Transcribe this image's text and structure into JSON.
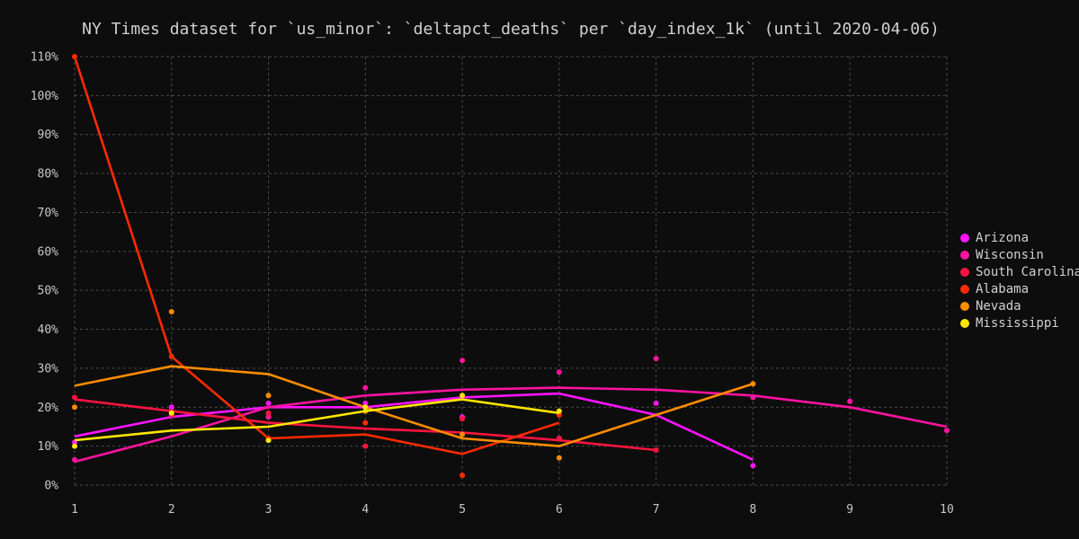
{
  "chart_data": {
    "type": "line",
    "title": "NY Times dataset for `us_minor`: `deltapct_deaths` per `day_index_1k` (until 2020-04-06)",
    "xlabel": "",
    "ylabel": "",
    "xlim": [
      1,
      10
    ],
    "ylim": [
      0,
      110
    ],
    "x_ticks": [
      1,
      2,
      3,
      4,
      5,
      6,
      7,
      8,
      9,
      10
    ],
    "y_ticks": [
      0,
      10,
      20,
      30,
      40,
      50,
      60,
      70,
      80,
      90,
      100,
      110
    ],
    "y_tick_format": "percent",
    "grid": true,
    "legend_position": "right",
    "series": [
      {
        "name": "Arizona",
        "color": "#ff14ff",
        "points": [
          [
            1,
            11
          ],
          [
            2,
            20
          ],
          [
            3,
            21
          ],
          [
            4,
            21
          ],
          [
            5,
            17.5
          ],
          [
            6,
            12
          ],
          [
            7,
            21
          ],
          [
            8,
            5
          ]
        ],
        "trend": [
          [
            1,
            12.5
          ],
          [
            2,
            17.5
          ],
          [
            3,
            20
          ],
          [
            4,
            20
          ],
          [
            5,
            22.5
          ],
          [
            6,
            23.5
          ],
          [
            7,
            18
          ],
          [
            8,
            6.5
          ]
        ]
      },
      {
        "name": "Wisconsin",
        "color": "#ff14a0",
        "points": [
          [
            1,
            6.5
          ],
          [
            2,
            19
          ],
          [
            3,
            17.5
          ],
          [
            4,
            25
          ],
          [
            5,
            32
          ],
          [
            6,
            29
          ],
          [
            7,
            32.5
          ],
          [
            8,
            22.5
          ],
          [
            9,
            21.5
          ],
          [
            10,
            14
          ]
        ],
        "trend": [
          [
            1,
            6
          ],
          [
            2,
            12.5
          ],
          [
            3,
            20
          ],
          [
            4,
            23
          ],
          [
            5,
            24.5
          ],
          [
            6,
            25
          ],
          [
            7,
            24.5
          ],
          [
            8,
            23
          ],
          [
            9,
            20
          ],
          [
            10,
            15
          ]
        ]
      },
      {
        "name": "South Carolina",
        "color": "#ff1440",
        "points": [
          [
            1,
            22.5
          ],
          [
            2,
            18
          ],
          [
            3,
            18.5
          ],
          [
            4,
            10
          ],
          [
            5,
            17
          ],
          [
            6,
            12
          ],
          [
            7,
            9
          ]
        ],
        "trend": [
          [
            1,
            22
          ],
          [
            2,
            19
          ],
          [
            3,
            16
          ],
          [
            4,
            14.5
          ],
          [
            5,
            13.5
          ],
          [
            6,
            11.5
          ],
          [
            7,
            9
          ]
        ]
      },
      {
        "name": "Alabama",
        "color": "#ff2a00",
        "points": [
          [
            1,
            110
          ],
          [
            2,
            33
          ],
          [
            3,
            12
          ],
          [
            4,
            16
          ],
          [
            5,
            2.5
          ],
          [
            6,
            18
          ]
        ],
        "trend": [
          [
            1,
            110
          ],
          [
            2,
            33
          ],
          [
            3,
            12
          ],
          [
            4,
            13
          ],
          [
            5,
            8
          ],
          [
            6,
            16
          ]
        ]
      },
      {
        "name": "Nevada",
        "color": "#ff8c00",
        "points": [
          [
            1,
            20
          ],
          [
            2,
            44.5
          ],
          [
            3,
            23
          ],
          [
            4,
            19
          ],
          [
            5,
            13
          ],
          [
            6,
            7
          ],
          [
            8,
            26
          ]
        ],
        "trend": [
          [
            1,
            25.5
          ],
          [
            2,
            30.5
          ],
          [
            3,
            28.5
          ],
          [
            4,
            20
          ],
          [
            5,
            12
          ],
          [
            6,
            10
          ],
          [
            7,
            18
          ],
          [
            8,
            26
          ]
        ]
      },
      {
        "name": "Mississippi",
        "color": "#ffe600",
        "points": [
          [
            1,
            10
          ],
          [
            2,
            18.5
          ],
          [
            3,
            11.5
          ],
          [
            4,
            20
          ],
          [
            5,
            23
          ],
          [
            6,
            19
          ]
        ],
        "trend": [
          [
            1,
            11.5
          ],
          [
            2,
            14
          ],
          [
            3,
            15
          ],
          [
            4,
            19
          ],
          [
            5,
            22
          ],
          [
            6,
            18.5
          ]
        ]
      }
    ]
  }
}
